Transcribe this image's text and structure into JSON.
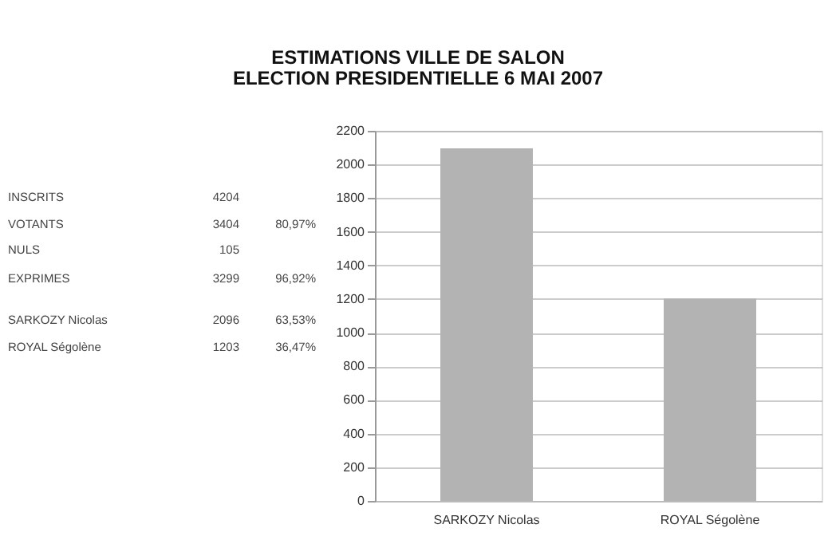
{
  "chart_data": {
    "type": "bar",
    "title": "ESTIMATIONS VILLE DE SALON",
    "subtitle": "ELECTION PRESIDENTIELLE 6 MAI 2007",
    "categories": [
      "SARKOZY Nicolas",
      "ROYAL Ségolène"
    ],
    "values": [
      2096,
      1203
    ],
    "color": "#b3b3b3",
    "ylim": [
      0,
      2200
    ],
    "yticks": [
      0,
      200,
      400,
      600,
      800,
      1000,
      1200,
      1400,
      1600,
      1800,
      2000,
      2200
    ],
    "grid": "y",
    "legend": false,
    "annotations": [
      "INSCRITS",
      "4204",
      "VOTANTS",
      "3404",
      "80,97%",
      "NULS",
      "105",
      "EXPRIMES",
      "3299",
      "96,92%",
      "SARKOZY Nicolas",
      "2096",
      "63,53%",
      "ROYAL Ségolène",
      "1203",
      "36,47%"
    ]
  }
}
